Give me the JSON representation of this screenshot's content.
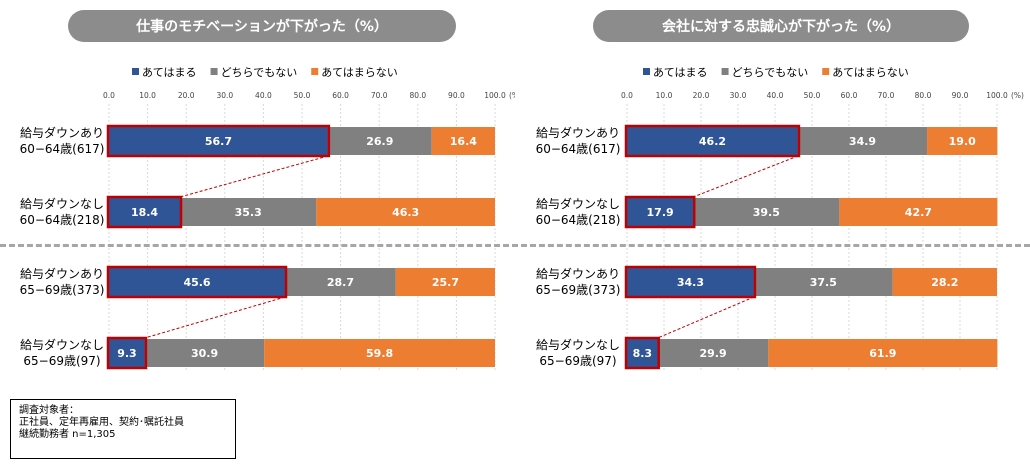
{
  "legend": [
    {
      "label": "あてはまる",
      "color": "#2f5597"
    },
    {
      "label": "どちらでもない",
      "color": "#808080"
    },
    {
      "label": "あてはまらない",
      "color": "#ed7d31"
    }
  ],
  "highlight_color": "#c00000",
  "note": {
    "line1": "調査対象者：",
    "line2": "正社員、定年再雇用、契約･嘱託社員",
    "line3": "継続勤務者 n=1,305"
  },
  "chart_data": [
    {
      "type": "bar",
      "stacked": true,
      "orientation": "horizontal",
      "title": "仕事のモチベーションが下がった（%）",
      "x_ticks": [
        "0.0",
        "10.0",
        "20.0",
        "30.0",
        "40.0",
        "50.0",
        "60.0",
        "70.0",
        "80.0",
        "90.0",
        "100.0"
      ],
      "x_unit": "(%)",
      "xlim": [
        0,
        100
      ],
      "categories": [
        {
          "line1": "給与ダウンあり",
          "line2": "60−64歳(617)"
        },
        {
          "line1": "給与ダウンなし",
          "line2": "60−64歳(218)"
        },
        {
          "line1": "給与ダウンあり",
          "line2": "65−69歳(373)"
        },
        {
          "line1": "給与ダウンなし",
          "line2": "65−69歳(97)"
        }
      ],
      "series": [
        {
          "name": "あてはまる",
          "values": [
            56.7,
            18.4,
            45.6,
            9.3
          ]
        },
        {
          "name": "どちらでもない",
          "values": [
            26.9,
            35.3,
            28.7,
            30.9
          ]
        },
        {
          "name": "あてはまらない",
          "values": [
            16.4,
            46.3,
            25.7,
            59.8
          ]
        }
      ]
    },
    {
      "type": "bar",
      "stacked": true,
      "orientation": "horizontal",
      "title": "会社に対する忠誠心が下がった（%）",
      "x_ticks": [
        "0.0",
        "10.0",
        "20.0",
        "30.0",
        "40.0",
        "50.0",
        "60.0",
        "70.0",
        "80.0",
        "90.0",
        "100.0"
      ],
      "x_unit": "(%)",
      "xlim": [
        0,
        100
      ],
      "categories": [
        {
          "line1": "給与ダウンあり",
          "line2": "60−64歳(617)"
        },
        {
          "line1": "給与ダウンなし",
          "line2": "60−64歳(218)"
        },
        {
          "line1": "給与ダウンあり",
          "line2": "65−69歳(373)"
        },
        {
          "line1": "給与ダウンなし",
          "line2": "65−69歳(97)"
        }
      ],
      "series": [
        {
          "name": "あてはまる",
          "values": [
            46.2,
            17.9,
            34.3,
            8.3
          ]
        },
        {
          "name": "どちらでもない",
          "values": [
            34.9,
            39.5,
            37.5,
            29.9
          ]
        },
        {
          "name": "あてはまらない",
          "values": [
            19.0,
            42.7,
            28.2,
            61.9
          ]
        }
      ]
    }
  ]
}
